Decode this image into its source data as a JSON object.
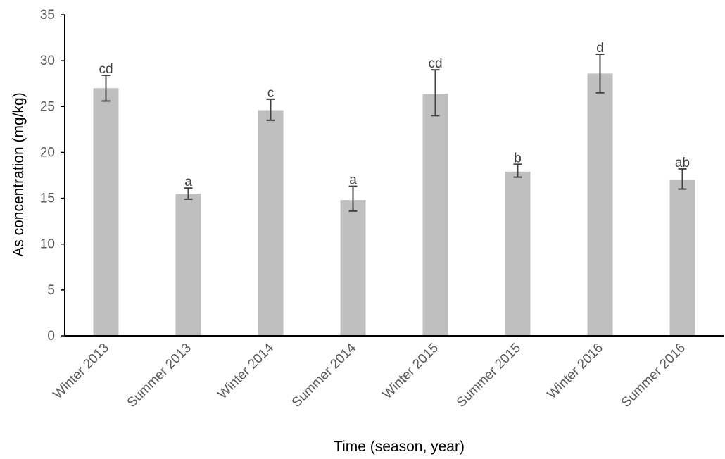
{
  "chart_data": {
    "type": "bar",
    "xlabel": "Time (season, year)",
    "ylabel": "As concentration (mg/kg)",
    "ylim": [
      0,
      35
    ],
    "yticks": [
      0,
      5,
      10,
      15,
      20,
      25,
      30,
      35
    ],
    "grid": false,
    "legend": "none",
    "colors": {
      "bar": "#bfbfbf",
      "axis": "#000000",
      "error_bar": "#404040"
    },
    "categories": [
      "Winter 2013",
      "Summer 2013",
      "Winter 2014",
      "Summer 2014",
      "Winter 2015",
      "Summer 2015",
      "Winter 2016",
      "Summer 2016"
    ],
    "values": [
      27.0,
      15.5,
      24.6,
      14.8,
      26.4,
      17.9,
      28.6,
      17.0
    ],
    "error_low": [
      1.4,
      0.6,
      1.1,
      1.2,
      2.4,
      0.6,
      2.1,
      1.0
    ],
    "error_high": [
      1.4,
      0.6,
      1.2,
      1.5,
      2.6,
      0.8,
      2.1,
      1.2
    ],
    "significance_labels": [
      "cd",
      "a",
      "c",
      "a",
      "cd",
      "b",
      "d",
      "ab"
    ]
  }
}
